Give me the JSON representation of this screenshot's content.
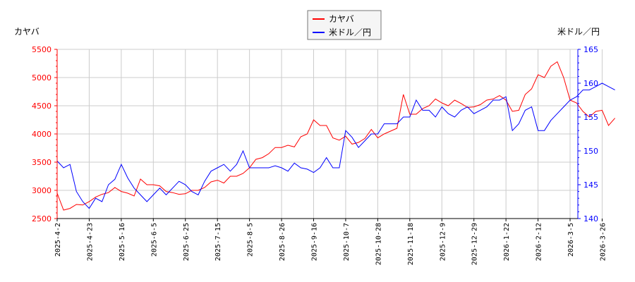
{
  "chart_data": {
    "type": "line",
    "left_axis_label": "カヤバ",
    "right_axis_label": "米ドル／円",
    "legend": {
      "placement": "top-center",
      "entries": [
        "カヤバ",
        "米ドル／円"
      ]
    },
    "grid": true,
    "x_tick_labels": [
      "2025-4-2",
      "2025-4-23",
      "2025-5-16",
      "2025-6-5",
      "2025-6-25",
      "2025-7-15",
      "2025-8-5",
      "2025-8-26",
      "2025-9-16",
      "2025-10-7",
      "2025-10-28",
      "2025-11-18",
      "2025-12-9",
      "2025-12-29",
      "2026-1-22",
      "2026-2-12",
      "2026-3-5",
      "2026-3-26"
    ],
    "left_ylim": [
      2500,
      5500
    ],
    "left_ticks": [
      2500,
      3000,
      3500,
      4000,
      4500,
      5000,
      5500
    ],
    "right_ylim": [
      140,
      165
    ],
    "right_ticks": [
      140,
      145,
      150,
      155,
      160,
      165
    ],
    "series": [
      {
        "name": "カヤバ",
        "axis": "left",
        "color": "#ff0000",
        "values": [
          2950,
          2650,
          2680,
          2750,
          2740,
          2800,
          2880,
          2930,
          2960,
          3050,
          2980,
          2950,
          2900,
          3200,
          3100,
          3100,
          3080,
          2980,
          2960,
          2930,
          2940,
          3000,
          3000,
          3050,
          3150,
          3180,
          3130,
          3250,
          3250,
          3300,
          3400,
          3550,
          3580,
          3650,
          3760,
          3760,
          3800,
          3770,
          3950,
          4000,
          4250,
          4150,
          4150,
          3930,
          3890,
          3960,
          3820,
          3850,
          3920,
          4080,
          3930,
          4000,
          4050,
          4100,
          4700,
          4350,
          4350,
          4450,
          4500,
          4620,
          4550,
          4500,
          4600,
          4540,
          4470,
          4480,
          4520,
          4600,
          4620,
          4680,
          4600,
          4400,
          4420,
          4700,
          4800,
          5050,
          5000,
          5200,
          5280,
          5000,
          4600,
          4550,
          4400,
          4300,
          4400,
          4420,
          4150,
          4280
        ]
      },
      {
        "name": "米ドル／円",
        "axis": "right",
        "color": "#0000ff",
        "values": [
          148.5,
          147.5,
          148,
          144,
          142.5,
          141.5,
          143,
          142.5,
          145,
          145.8,
          148,
          146,
          144.5,
          143.5,
          142.5,
          143.5,
          144.5,
          143.5,
          144.5,
          145.5,
          145,
          144,
          143.5,
          145.5,
          147,
          147.5,
          148,
          147,
          148,
          150,
          147.5,
          147.5,
          147.5,
          147.5,
          147.8,
          147.5,
          147,
          148.2,
          147.5,
          147.3,
          146.8,
          147.5,
          149,
          147.5,
          147.5,
          153,
          152,
          150.5,
          151.5,
          152.5,
          152.5,
          154,
          154,
          154,
          155,
          155,
          157.5,
          156,
          156,
          155,
          156.5,
          155.5,
          155,
          156,
          156.5,
          155.5,
          156,
          156.5,
          157.5,
          157.5,
          158,
          153,
          154,
          156,
          156.5,
          153,
          153,
          154.5,
          155.5,
          156.5,
          157.5,
          158,
          159,
          159,
          159.5,
          160,
          159.5,
          159
        ]
      }
    ]
  }
}
